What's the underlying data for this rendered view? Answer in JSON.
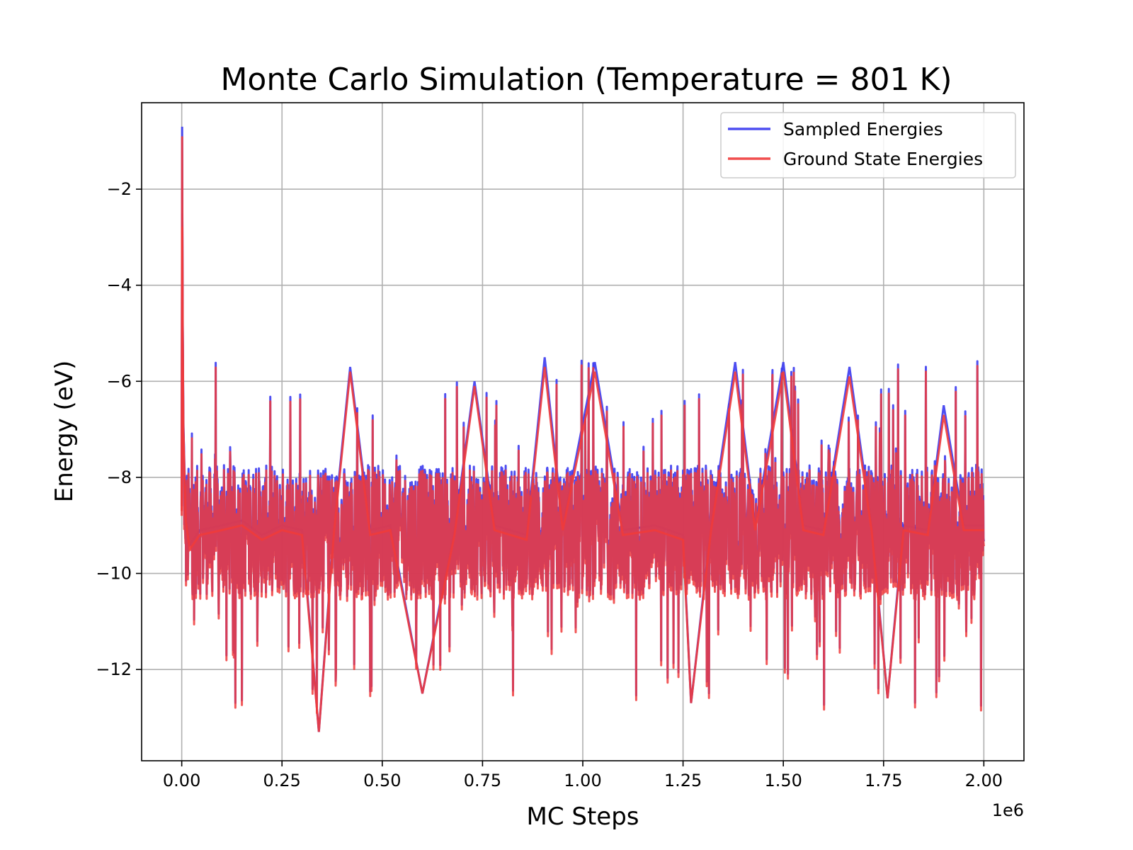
{
  "chart_data": {
    "type": "line",
    "title": "Monte Carlo Simulation (Temperature = 801 K)",
    "xlabel": "MC Steps",
    "ylabel": "Energy (eV)",
    "x_offset_label": "1e6",
    "xlim": [
      -0.1,
      2.1
    ],
    "ylim": [
      -13.9,
      -0.2
    ],
    "x_ticks": [
      0.0,
      0.25,
      0.5,
      0.75,
      1.0,
      1.25,
      1.5,
      1.75,
      2.0
    ],
    "x_tick_labels": [
      "0.00",
      "0.25",
      "0.50",
      "0.75",
      "1.00",
      "1.25",
      "1.50",
      "1.75",
      "2.00"
    ],
    "y_ticks": [
      -2,
      -4,
      -6,
      -8,
      -10,
      -12
    ],
    "y_tick_labels": [
      "−2",
      "−4",
      "−6",
      "−8",
      "−10",
      "−12"
    ],
    "grid": true,
    "legend_position": "top-right",
    "series": [
      {
        "name": "Sampled Energies",
        "color": "#3b3bf0",
        "x": [
          0.0,
          0.001,
          0.002,
          0.004,
          0.01,
          0.02,
          0.045,
          0.1,
          0.15,
          0.2,
          0.25,
          0.3,
          0.342,
          0.38,
          0.42,
          0.47,
          0.52,
          0.6,
          0.68,
          0.73,
          0.78,
          0.86,
          0.905,
          0.95,
          1.03,
          1.1,
          1.18,
          1.25,
          1.27,
          1.32,
          1.38,
          1.43,
          1.5,
          1.55,
          1.6,
          1.665,
          1.72,
          1.76,
          1.8,
          1.86,
          1.9,
          1.95,
          2.0
        ],
        "y": [
          -8.6,
          -0.7,
          -4.2,
          -6.9,
          -8.8,
          -9.4,
          -9.1,
          -9.0,
          -8.9,
          -9.2,
          -9.0,
          -9.1,
          -13.3,
          -9.0,
          -5.7,
          -9.1,
          -9.0,
          -12.5,
          -9.1,
          -6.0,
          -9.0,
          -9.2,
          -5.5,
          -9.0,
          -5.6,
          -9.1,
          -9.0,
          -9.2,
          -12.7,
          -9.0,
          -5.6,
          -9.0,
          -5.6,
          -9.0,
          -9.1,
          -5.7,
          -9.0,
          -12.6,
          -9.0,
          -9.1,
          -6.5,
          -9.0,
          -9.0
        ]
      },
      {
        "name": "Ground State Energies",
        "color": "#f03b3b",
        "x": [
          0.0,
          0.001,
          0.002,
          0.004,
          0.01,
          0.02,
          0.045,
          0.1,
          0.15,
          0.2,
          0.25,
          0.3,
          0.342,
          0.38,
          0.42,
          0.47,
          0.52,
          0.6,
          0.68,
          0.73,
          0.78,
          0.86,
          0.905,
          0.95,
          1.03,
          1.1,
          1.18,
          1.25,
          1.27,
          1.32,
          1.38,
          1.43,
          1.5,
          1.55,
          1.6,
          1.665,
          1.72,
          1.76,
          1.8,
          1.86,
          1.9,
          1.95,
          2.0
        ],
        "y": [
          -8.7,
          -0.9,
          -4.4,
          -7.0,
          -8.9,
          -9.5,
          -9.2,
          -9.1,
          -9.0,
          -9.3,
          -9.1,
          -9.2,
          -13.3,
          -9.1,
          -5.8,
          -9.2,
          -9.1,
          -12.5,
          -9.2,
          -6.1,
          -9.1,
          -9.3,
          -5.7,
          -9.1,
          -5.8,
          -9.2,
          -9.1,
          -9.3,
          -12.7,
          -9.1,
          -5.8,
          -9.1,
          -5.8,
          -9.1,
          -9.2,
          -5.9,
          -9.1,
          -12.6,
          -9.1,
          -9.2,
          -6.7,
          -9.1,
          -9.1
        ]
      }
    ]
  }
}
